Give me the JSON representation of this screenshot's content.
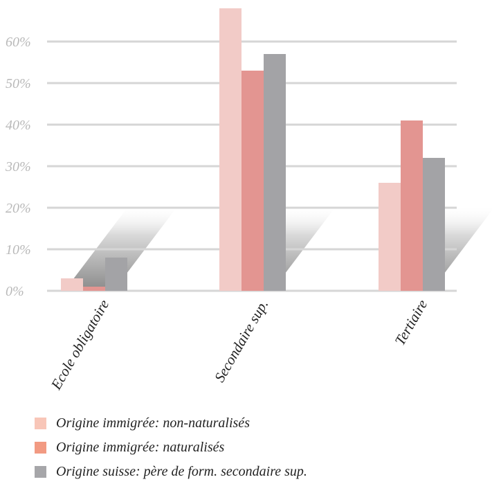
{
  "chart_data": {
    "type": "bar",
    "categories": [
      "Ecole obligatoire",
      "Secondaire sup.",
      "Tertiaire"
    ],
    "series": [
      {
        "name": "Origine immigrée: non-naturalisés",
        "color": "#f2cbc7",
        "values": [
          3,
          68,
          26
        ]
      },
      {
        "name": "Origine immigrée: naturalisés",
        "color": "#e39591",
        "values": [
          1,
          53,
          41
        ]
      },
      {
        "name": "Origine suisse: père de form. secondaire sup.",
        "color": "#a3a3a6",
        "values": [
          8,
          57,
          32
        ]
      }
    ],
    "y_ticks": [
      "0%",
      "10%",
      "20%",
      "30%",
      "40%",
      "50%",
      "60%"
    ],
    "ylim": [
      0,
      70
    ],
    "grid": true,
    "legend_position": "bottom-left",
    "title": "",
    "xlabel": "",
    "ylabel": ""
  },
  "legend": {
    "swatch_colors": [
      "#f8c6b8",
      "#f29a82",
      "#a6a6a9"
    ]
  }
}
